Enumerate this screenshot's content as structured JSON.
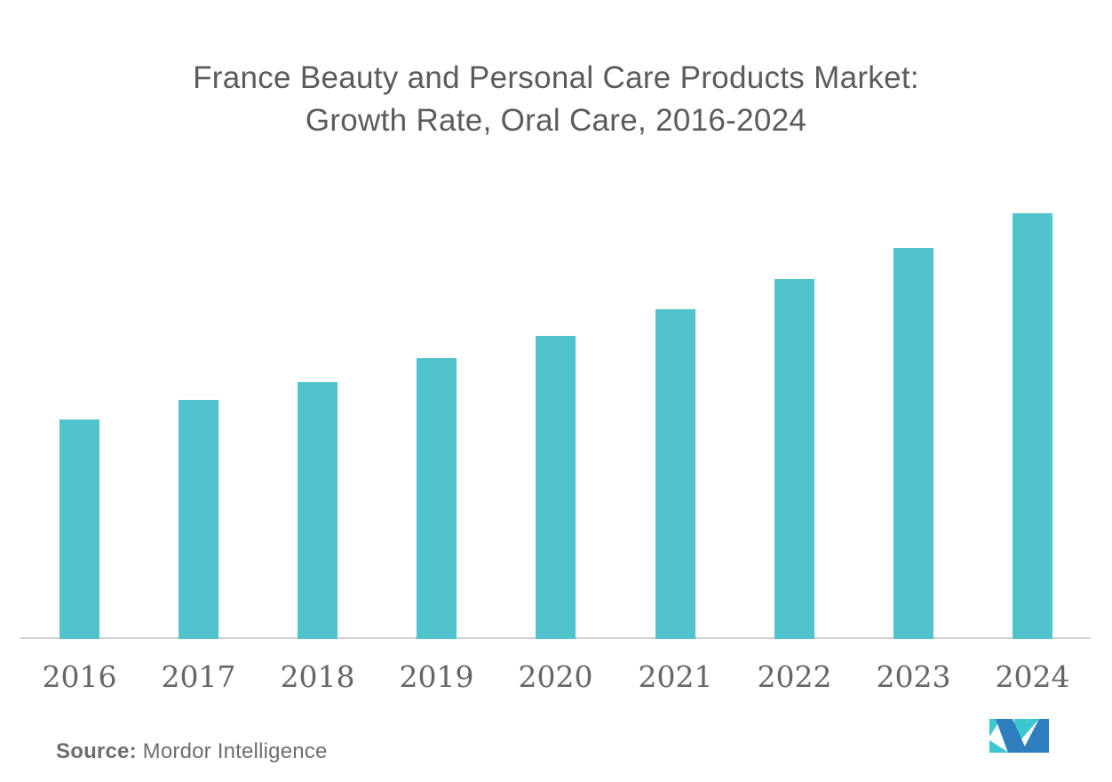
{
  "page": {
    "background": "#FFFFFF"
  },
  "title": {
    "line1": "France Beauty and Personal Care Products Market:",
    "line2": "Growth Rate, Oral Care, 2016-2024",
    "color": "#5B5B5D"
  },
  "source": {
    "label": "Source:",
    "text": " Mordor Intelligence",
    "color": "#6E6E6E"
  },
  "logo": {
    "name": "mordor-intelligence-logo",
    "teal": "#3EC6D0",
    "blue": "#2E7EC0"
  },
  "chart_data": {
    "type": "bar",
    "title": "France Beauty and Personal Care Products Market: Growth Rate, Oral Care, 2016-2024",
    "categories": [
      "2016",
      "2017",
      "2018",
      "2019",
      "2020",
      "2021",
      "2022",
      "2023",
      "2024"
    ],
    "values": [
      51.6,
      56.2,
      60.3,
      66.0,
      71.2,
      77.5,
      84.6,
      91.9,
      100.0
    ],
    "value_note": "No y-axis or data labels shown in chart; values are estimated relative bar heights indexed to tallest bar (2024 = 100)",
    "xlabel": "",
    "ylabel": "",
    "bar_color": "#50C3CC",
    "axis_line_color": "#D5D1D1",
    "tick_label_color": "#676566",
    "gridlines": false,
    "legend": false,
    "y_axis_visible": false
  }
}
